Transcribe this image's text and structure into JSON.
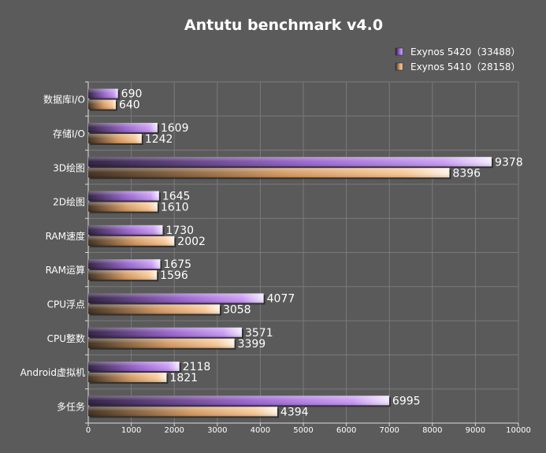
{
  "chart_data": {
    "type": "bar",
    "orientation": "horizontal",
    "title": "Antutu benchmark v4.0",
    "categories": [
      "数据库I/O",
      "存储I/O",
      "3D绘图",
      "2D绘图",
      "RAM速度",
      "RAM运算",
      "CPU浮点",
      "CPU整数",
      "Android虚拟机",
      "多任务"
    ],
    "series": [
      {
        "name": "Exynos 5420（33488）",
        "color": "#c18cf2",
        "values": [
          690,
          1609,
          9378,
          1645,
          1730,
          1675,
          4077,
          3571,
          2118,
          6995
        ]
      },
      {
        "name": "Exynos 5410（28158）",
        "color": "#f6c18e",
        "values": [
          640,
          1242,
          8396,
          1610,
          2002,
          1596,
          3058,
          3399,
          1821,
          4394
        ]
      }
    ],
    "xlim": [
      0,
      10000
    ],
    "xticks": [
      0,
      1000,
      2000,
      3000,
      4000,
      5000,
      6000,
      7000,
      8000,
      9000,
      10000
    ],
    "grid": true,
    "legend": "top-right"
  }
}
